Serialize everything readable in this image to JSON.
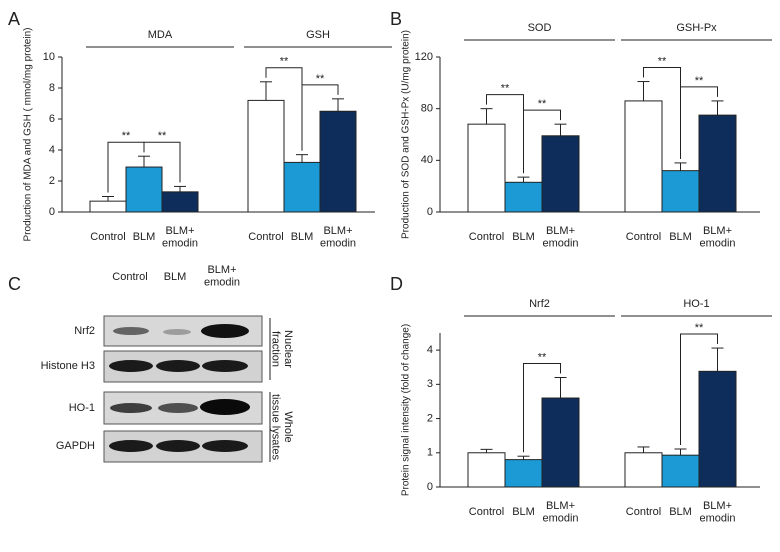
{
  "chart_data": [
    {
      "type": "bar",
      "panel": "A",
      "ylabel": "Production of MDA and GSH ( mmol/mg protein)",
      "groups": [
        "MDA",
        "GSH"
      ],
      "series": [
        {
          "name": "Control",
          "color": "#ffffff",
          "values": [
            0.7,
            7.2
          ],
          "errors": [
            0.3,
            1.2
          ]
        },
        {
          "name": "BLM",
          "color": "#1b9ad6",
          "values": [
            2.9,
            3.2
          ],
          "errors": [
            0.7,
            0.5
          ]
        },
        {
          "name": "BLM+ emodin",
          "color": "#0e2d5a",
          "values": [
            1.3,
            6.5
          ],
          "errors": [
            0.35,
            0.8
          ]
        }
      ],
      "annotations": [
        [
          "**",
          "**"
        ],
        [
          "**",
          "**"
        ]
      ],
      "ylim": [
        0,
        10
      ],
      "yticks": [
        0,
        2,
        4,
        6,
        8,
        10
      ]
    },
    {
      "type": "bar",
      "panel": "B",
      "ylabel": "Production of SOD and GSH-Px (U/mg protein)",
      "groups": [
        "SOD",
        "GSH-Px"
      ],
      "series": [
        {
          "name": "Control",
          "color": "#ffffff",
          "values": [
            68,
            86
          ],
          "errors": [
            12,
            15
          ]
        },
        {
          "name": "BLM",
          "color": "#1b9ad6",
          "values": [
            23,
            32
          ],
          "errors": [
            4,
            6
          ]
        },
        {
          "name": "BLM+ emodin",
          "color": "#0e2d5a",
          "values": [
            59,
            75
          ],
          "errors": [
            9,
            11
          ]
        }
      ],
      "annotations": [
        [
          "**",
          "**"
        ],
        [
          "**",
          "**"
        ]
      ],
      "ylim": [
        0,
        120
      ],
      "yticks": [
        0,
        40,
        80,
        120
      ]
    },
    {
      "type": "bar",
      "panel": "D",
      "ylabel": "Protein signal intensity (fold of change)",
      "groups": [
        "Nrf2",
        "HO-1"
      ],
      "series": [
        {
          "name": "Control",
          "color": "#ffffff",
          "values": [
            1.0,
            1.0
          ],
          "errors": [
            0.1,
            0.17
          ]
        },
        {
          "name": "BLM",
          "color": "#1b9ad6",
          "values": [
            0.8,
            0.93
          ],
          "errors": [
            0.1,
            0.18
          ]
        },
        {
          "name": "BLM+ emodin",
          "color": "#0e2d5a",
          "values": [
            2.6,
            3.38
          ],
          "errors": [
            0.6,
            0.68
          ]
        }
      ],
      "annotations": [
        [
          "**"
        ],
        [
          "**"
        ]
      ],
      "ylim": [
        0,
        4.5
      ],
      "yticks": [
        0,
        1,
        2,
        3,
        4
      ]
    }
  ],
  "blot": {
    "panel": "C",
    "columns": [
      "Control",
      "BLM",
      "BLM+ emodin"
    ],
    "rows": [
      "Nrf2",
      "Histone H3",
      "HO-1",
      "GAPDH"
    ],
    "fractions": [
      "Nuclear fraction",
      "Whole tissue lysates"
    ]
  }
}
